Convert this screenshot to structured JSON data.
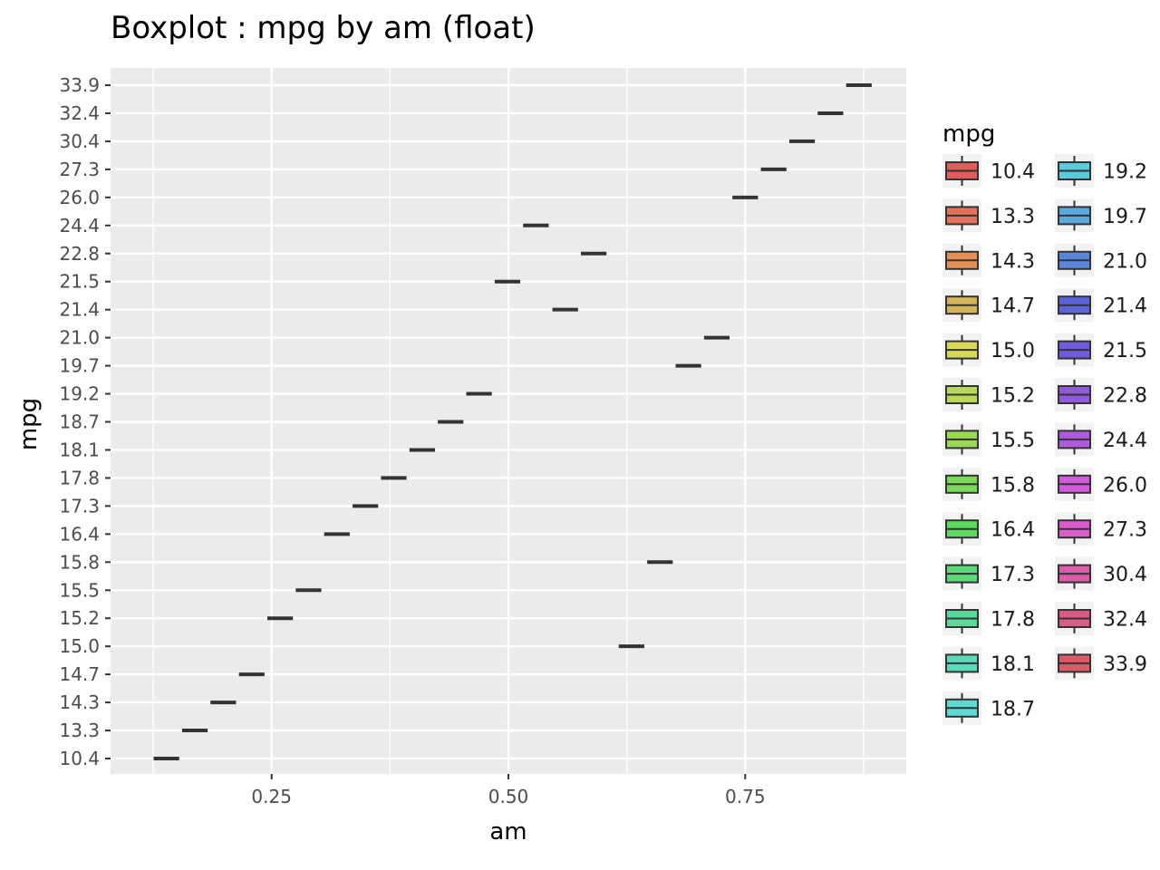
{
  "chart_data": {
    "type": "boxplot",
    "title": "Boxplot : mpg by am (float)",
    "xlabel": "am",
    "ylabel": "mpg",
    "xlim": [
      0.08,
      0.92
    ],
    "x_ticks": [
      0.25,
      0.5,
      0.75
    ],
    "x_tick_labels": [
      "0.25",
      "0.50",
      "0.75"
    ],
    "y_categories": [
      "10.4",
      "13.3",
      "14.3",
      "14.7",
      "15.0",
      "15.2",
      "15.5",
      "15.8",
      "16.4",
      "17.3",
      "17.8",
      "18.1",
      "18.7",
      "19.2",
      "19.7",
      "21.0",
      "21.4",
      "21.5",
      "22.8",
      "24.4",
      "26.0",
      "27.3",
      "30.4",
      "32.4",
      "33.9"
    ],
    "grid": true,
    "legend": {
      "title": "mpg",
      "placement": "right",
      "entries": [
        "10.4",
        "13.3",
        "14.3",
        "14.7",
        "15.0",
        "15.2",
        "15.5",
        "15.8",
        "16.4",
        "17.3",
        "17.8",
        "18.1",
        "18.7",
        "19.2",
        "19.7",
        "21.0",
        "21.4",
        "21.5",
        "22.8",
        "24.4",
        "26.0",
        "27.3",
        "30.4",
        "32.4",
        "33.9"
      ],
      "colors": [
        "#e25c5c",
        "#e2735a",
        "#e28f58",
        "#d4b459",
        "#d9d958",
        "#b8d958",
        "#9ad958",
        "#7bd95a",
        "#5dd95f",
        "#5bd97b",
        "#5bd99a",
        "#5bd9b8",
        "#5bd9d4",
        "#5bcadb",
        "#5ba8db",
        "#5b86db",
        "#5b64db",
        "#6f5bdb",
        "#8f5bdb",
        "#b05bdb",
        "#d25bdb",
        "#db5bca",
        "#db5ba8",
        "#db5b86",
        "#db5b68"
      ]
    },
    "series": [
      {
        "mpg": "10.4",
        "am": 0.139
      },
      {
        "mpg": "13.3",
        "am": 0.169
      },
      {
        "mpg": "14.3",
        "am": 0.199
      },
      {
        "mpg": "14.7",
        "am": 0.229
      },
      {
        "mpg": "15.0",
        "am": 0.63
      },
      {
        "mpg": "15.2",
        "am": 0.259
      },
      {
        "mpg": "15.5",
        "am": 0.289
      },
      {
        "mpg": "15.8",
        "am": 0.66
      },
      {
        "mpg": "16.4",
        "am": 0.319
      },
      {
        "mpg": "17.3",
        "am": 0.349
      },
      {
        "mpg": "17.8",
        "am": 0.379
      },
      {
        "mpg": "18.1",
        "am": 0.409
      },
      {
        "mpg": "18.7",
        "am": 0.439
      },
      {
        "mpg": "19.2",
        "am": 0.469
      },
      {
        "mpg": "19.7",
        "am": 0.69
      },
      {
        "mpg": "21.0",
        "am": 0.72
      },
      {
        "mpg": "21.4",
        "am": 0.56
      },
      {
        "mpg": "21.5",
        "am": 0.499
      },
      {
        "mpg": "22.8",
        "am": 0.59
      },
      {
        "mpg": "24.4",
        "am": 0.529
      },
      {
        "mpg": "26.0",
        "am": 0.75
      },
      {
        "mpg": "27.3",
        "am": 0.78
      },
      {
        "mpg": "30.4",
        "am": 0.81
      },
      {
        "mpg": "32.4",
        "am": 0.84
      },
      {
        "mpg": "33.9",
        "am": 0.87
      }
    ]
  }
}
